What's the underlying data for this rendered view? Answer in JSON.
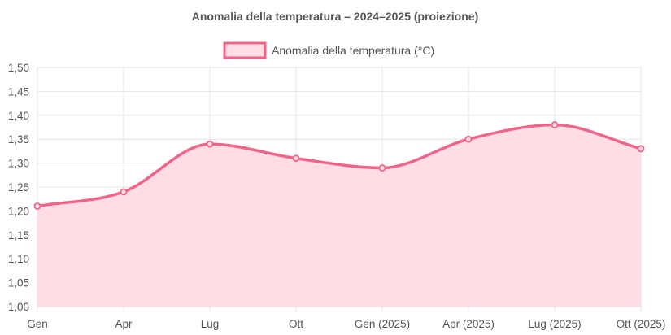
{
  "chart_data": {
    "type": "area",
    "title": "Anomalia della temperatura – 2024–2025 (proiezione)",
    "categories": [
      "Gen",
      "Apr",
      "Lug",
      "Ott",
      "Gen (2025)",
      "Apr (2025)",
      "Lug (2025)",
      "Ott (2025)"
    ],
    "series": [
      {
        "name": "Anomalia della temperatura (°C)",
        "values": [
          1.21,
          1.24,
          1.34,
          1.31,
          1.29,
          1.35,
          1.38,
          1.33
        ],
        "color": "#f06488",
        "fill": "#ffdde4"
      }
    ],
    "ylim": [
      1.0,
      1.5
    ],
    "yticks": [
      "1,00",
      "1,05",
      "1,10",
      "1,15",
      "1,20",
      "1,25",
      "1,30",
      "1,35",
      "1,40",
      "1,45",
      "1,50"
    ],
    "xlabel": "",
    "ylabel": "",
    "grid": true,
    "legend_position": "top"
  }
}
